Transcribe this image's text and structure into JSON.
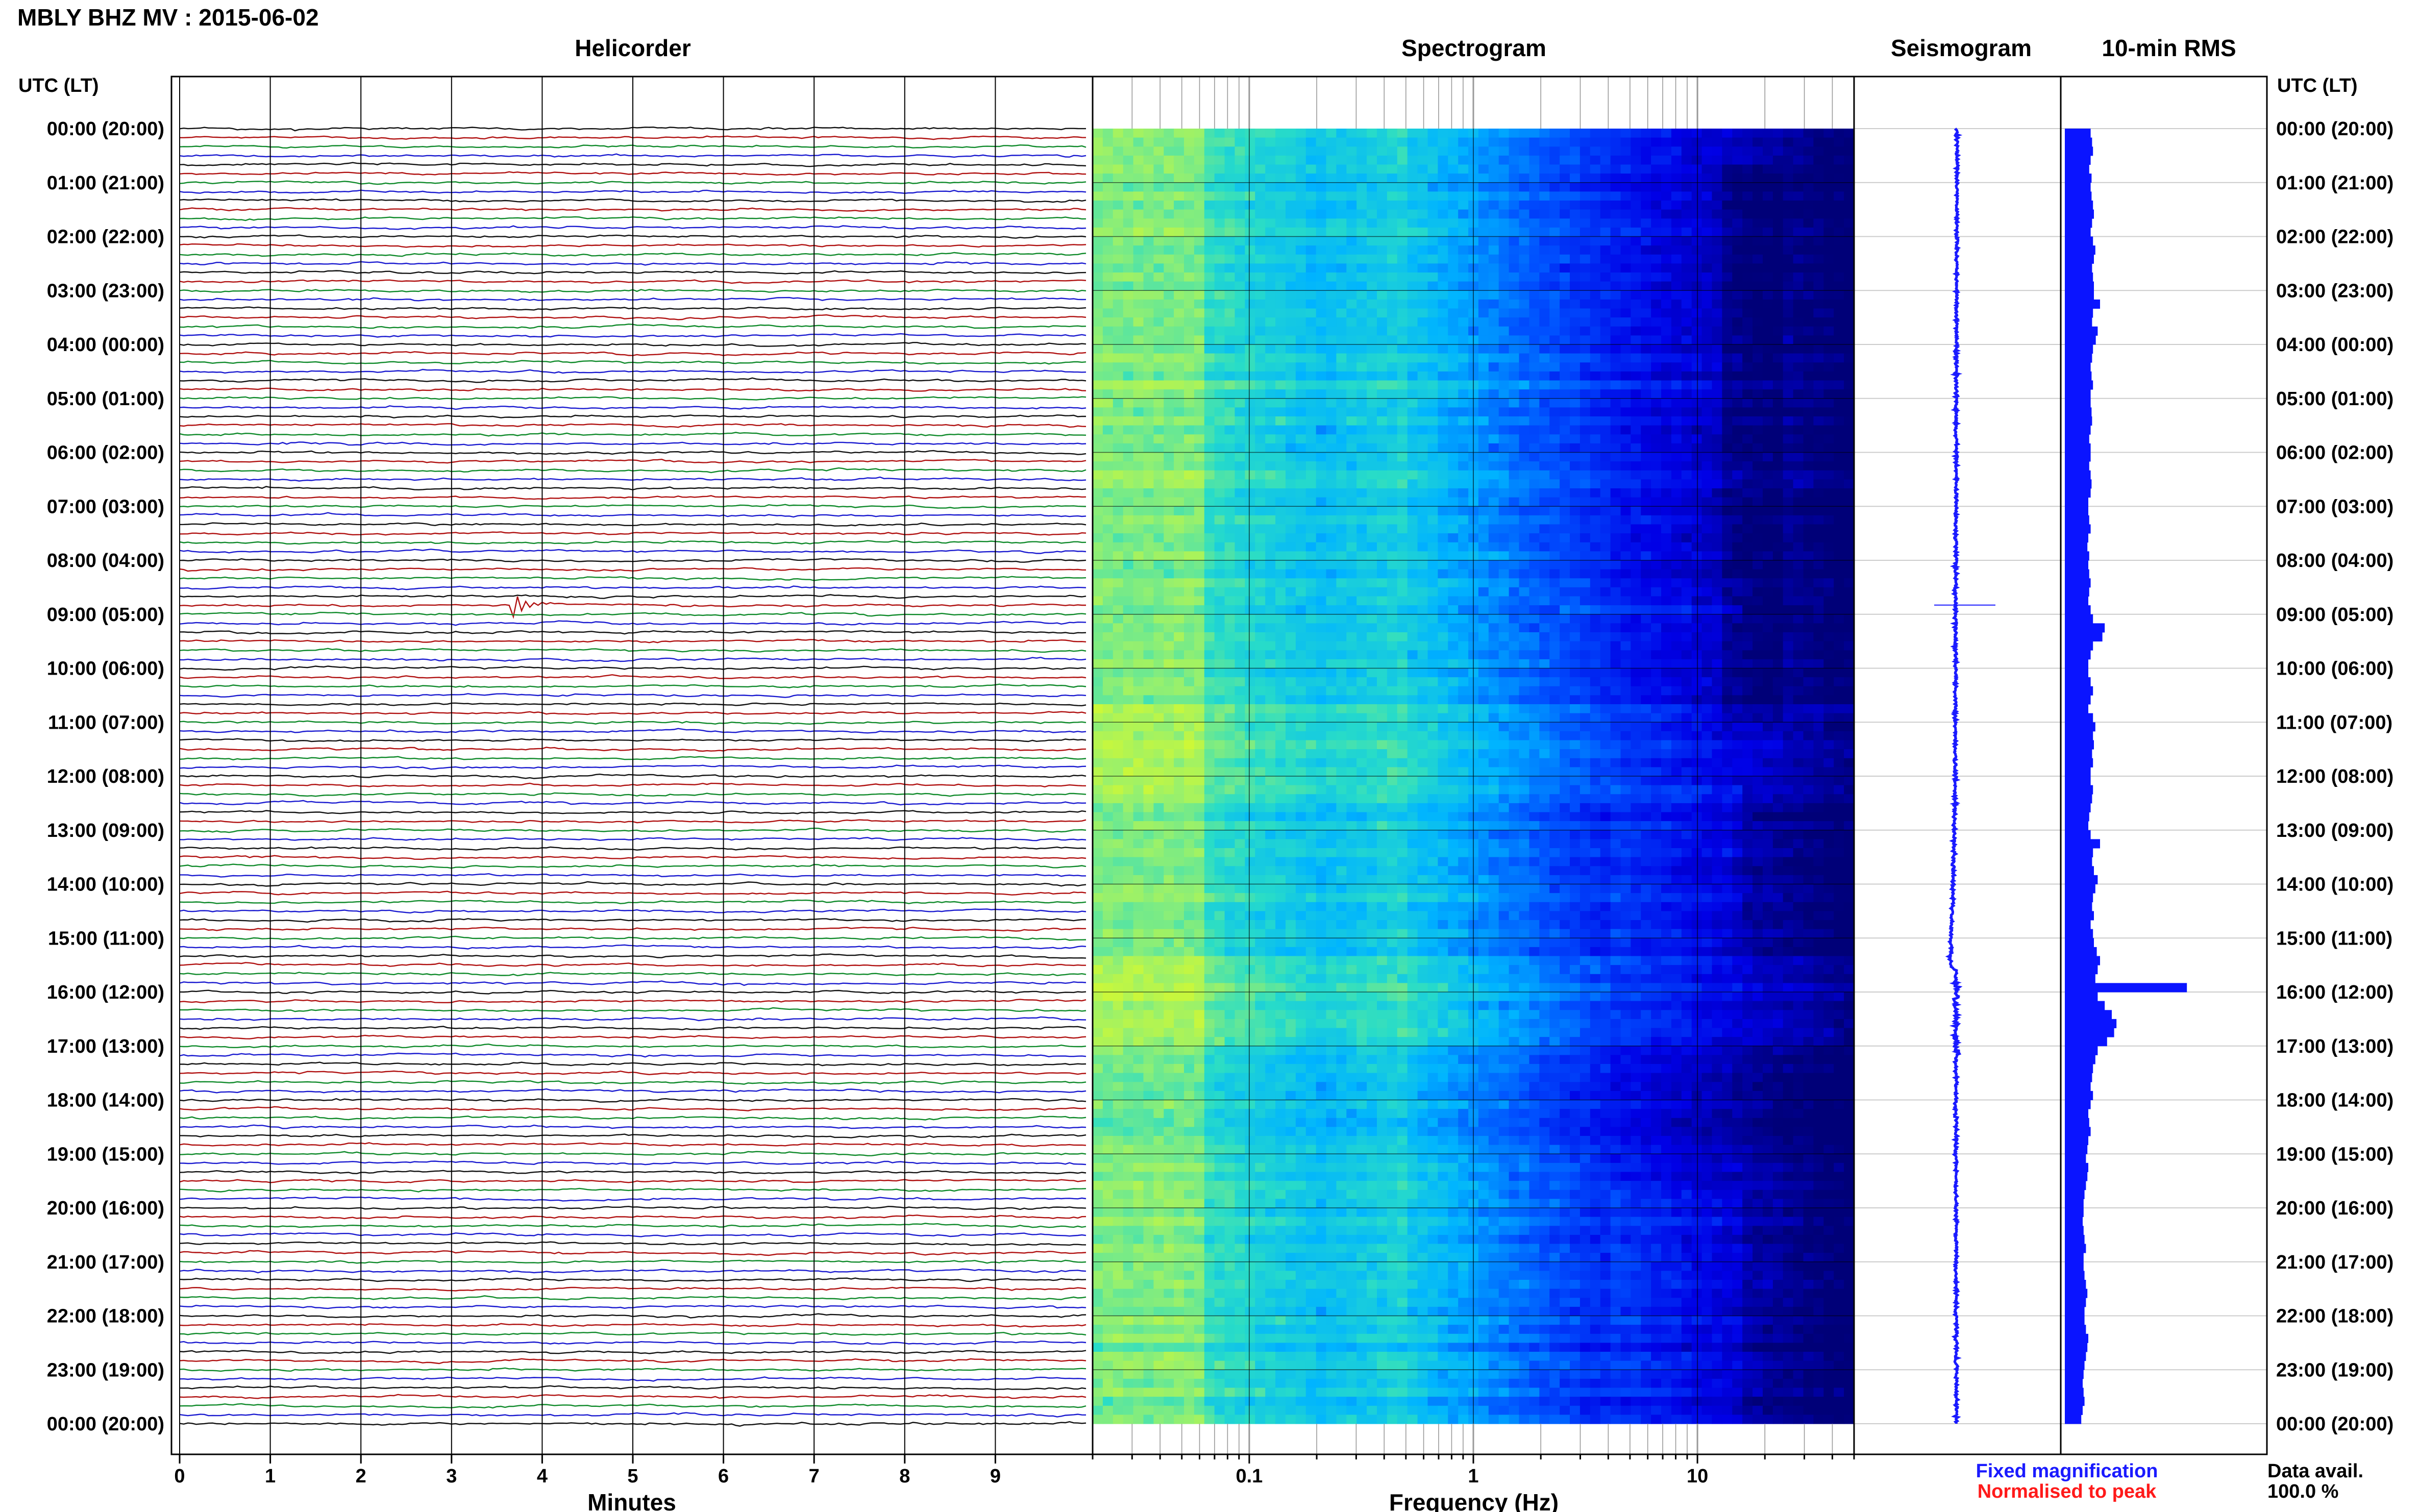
{
  "header": {
    "title": "MBLY BHZ MV : 2015-06-02",
    "left_axis_label": "UTC (LT)",
    "right_axis_label": "UTC (LT)"
  },
  "panels": {
    "helicorder_title": "Helicorder",
    "spectrogram_title": "Spectrogram",
    "seismogram_title": "Seismogram",
    "rms_title": "10-min RMS"
  },
  "footer": {
    "minutes_label": "Minutes",
    "frequency_label": "Frequency (Hz)",
    "fixed_magnification": "Fixed magnification",
    "normalised_to_peak": "Normalised to peak",
    "data_avail_label": "Data avail.",
    "data_avail_value": "100.0 %"
  },
  "colors": {
    "fixed_magnification": "#1a1aff",
    "normalised_to_peak": "#ff1a1a",
    "trace_black": "#111111",
    "trace_red": "#b01010",
    "trace_green": "#0f8a2a",
    "trace_blue": "#1a1ad0",
    "seismogram": "#1a1aff",
    "rms": "#0a14ff"
  },
  "chart_data": {
    "type": "heatmap",
    "time_labels": [
      "00:00 (20:00)",
      "01:00 (21:00)",
      "02:00 (22:00)",
      "03:00 (23:00)",
      "04:00 (00:00)",
      "05:00 (01:00)",
      "06:00 (02:00)",
      "07:00 (03:00)",
      "08:00 (04:00)",
      "09:00 (05:00)",
      "10:00 (06:00)",
      "11:00 (07:00)",
      "12:00 (08:00)",
      "13:00 (09:00)",
      "14:00 (10:00)",
      "15:00 (11:00)",
      "16:00 (12:00)",
      "17:00 (13:00)",
      "18:00 (14:00)",
      "19:00 (15:00)",
      "20:00 (16:00)",
      "21:00 (17:00)",
      "22:00 (18:00)",
      "23:00 (19:00)",
      "00:00 (20:00)"
    ],
    "helicorder": {
      "x_ticks": [
        "0",
        "1",
        "2",
        "3",
        "4",
        "5",
        "6",
        "7",
        "8",
        "9"
      ],
      "xlim": [
        0,
        10
      ],
      "traces_per_hour": 6,
      "trace_colors": [
        "black",
        "red",
        "green",
        "blue"
      ],
      "events": [
        {
          "hour": 8.4,
          "minute": 1.9,
          "color": "blue",
          "amp": 0.35
        },
        {
          "hour": 8.83,
          "minute": 3.7,
          "color": "red",
          "amp": 1.0
        },
        {
          "hour": 13.67,
          "minute": 9.4,
          "color": "blue",
          "amp": 0.4
        },
        {
          "hour": 3.67,
          "minute": 2.3,
          "color": "blue",
          "amp": 0.2
        }
      ]
    },
    "spectrogram": {
      "x_scale": "log",
      "xlim": [
        0.02,
        50
      ],
      "x_ticks": [
        "0.1",
        "1",
        "10"
      ],
      "x_tick_values": [
        0.1,
        1,
        10
      ]
    },
    "seismogram": {
      "spike_hour": 8.83,
      "offset_steps": [
        {
          "hour": 0,
          "offset": 0.0
        },
        {
          "hour": 12.5,
          "offset": -0.3
        },
        {
          "hour": 14.0,
          "offset": -0.6
        },
        {
          "hour": 15.5,
          "offset": -1.0
        },
        {
          "hour": 15.6,
          "offset": -0.2
        },
        {
          "hour": 24,
          "offset": -0.1
        }
      ]
    },
    "rms": {
      "interval_minutes": 10,
      "hour_values": [
        [
          0.55,
          0.58,
          0.6,
          0.55,
          0.52,
          0.57
        ],
        [
          0.55,
          0.57,
          0.6,
          0.62,
          0.58,
          0.55
        ],
        [
          0.6,
          0.65,
          0.62,
          0.58,
          0.6,
          0.62
        ],
        [
          0.62,
          0.75,
          0.6,
          0.58,
          0.7,
          0.66
        ],
        [
          0.6,
          0.58,
          0.55,
          0.57,
          0.6,
          0.55
        ],
        [
          0.55,
          0.57,
          0.58,
          0.55,
          0.52,
          0.55
        ],
        [
          0.55,
          0.52,
          0.55,
          0.57,
          0.55,
          0.5
        ],
        [
          0.5,
          0.52,
          0.55,
          0.5,
          0.48,
          0.52
        ],
        [
          0.5,
          0.52,
          0.55,
          0.52,
          0.5,
          0.55
        ],
        [
          0.6,
          0.85,
          0.8,
          0.6,
          0.55,
          0.5
        ],
        [
          0.5,
          0.55,
          0.6,
          0.55,
          0.5,
          0.6
        ],
        [
          0.65,
          0.6,
          0.62,
          0.58,
          0.6,
          0.55
        ],
        [
          0.55,
          0.6,
          0.58,
          0.55,
          0.52,
          0.5
        ],
        [
          0.55,
          0.75,
          0.6,
          0.58,
          0.62,
          0.7
        ],
        [
          0.65,
          0.6,
          0.58,
          0.62,
          0.55,
          0.6
        ],
        [
          0.62,
          0.68,
          0.75,
          0.7,
          0.65,
          2.6
        ],
        [
          0.7,
          0.85,
          1.0,
          1.1,
          1.05,
          0.9
        ],
        [
          0.7,
          0.65,
          0.6,
          0.58,
          0.55,
          0.6
        ],
        [
          0.55,
          0.5,
          0.52,
          0.55,
          0.5,
          0.48
        ],
        [
          0.45,
          0.5,
          0.48,
          0.45,
          0.42,
          0.4
        ],
        [
          0.4,
          0.38,
          0.4,
          0.42,
          0.45,
          0.4
        ],
        [
          0.4,
          0.42,
          0.45,
          0.48,
          0.45,
          0.42
        ],
        [
          0.42,
          0.45,
          0.5,
          0.48,
          0.45,
          0.42
        ],
        [
          0.4,
          0.38,
          0.4,
          0.42,
          0.38,
          0.35
        ]
      ]
    }
  }
}
